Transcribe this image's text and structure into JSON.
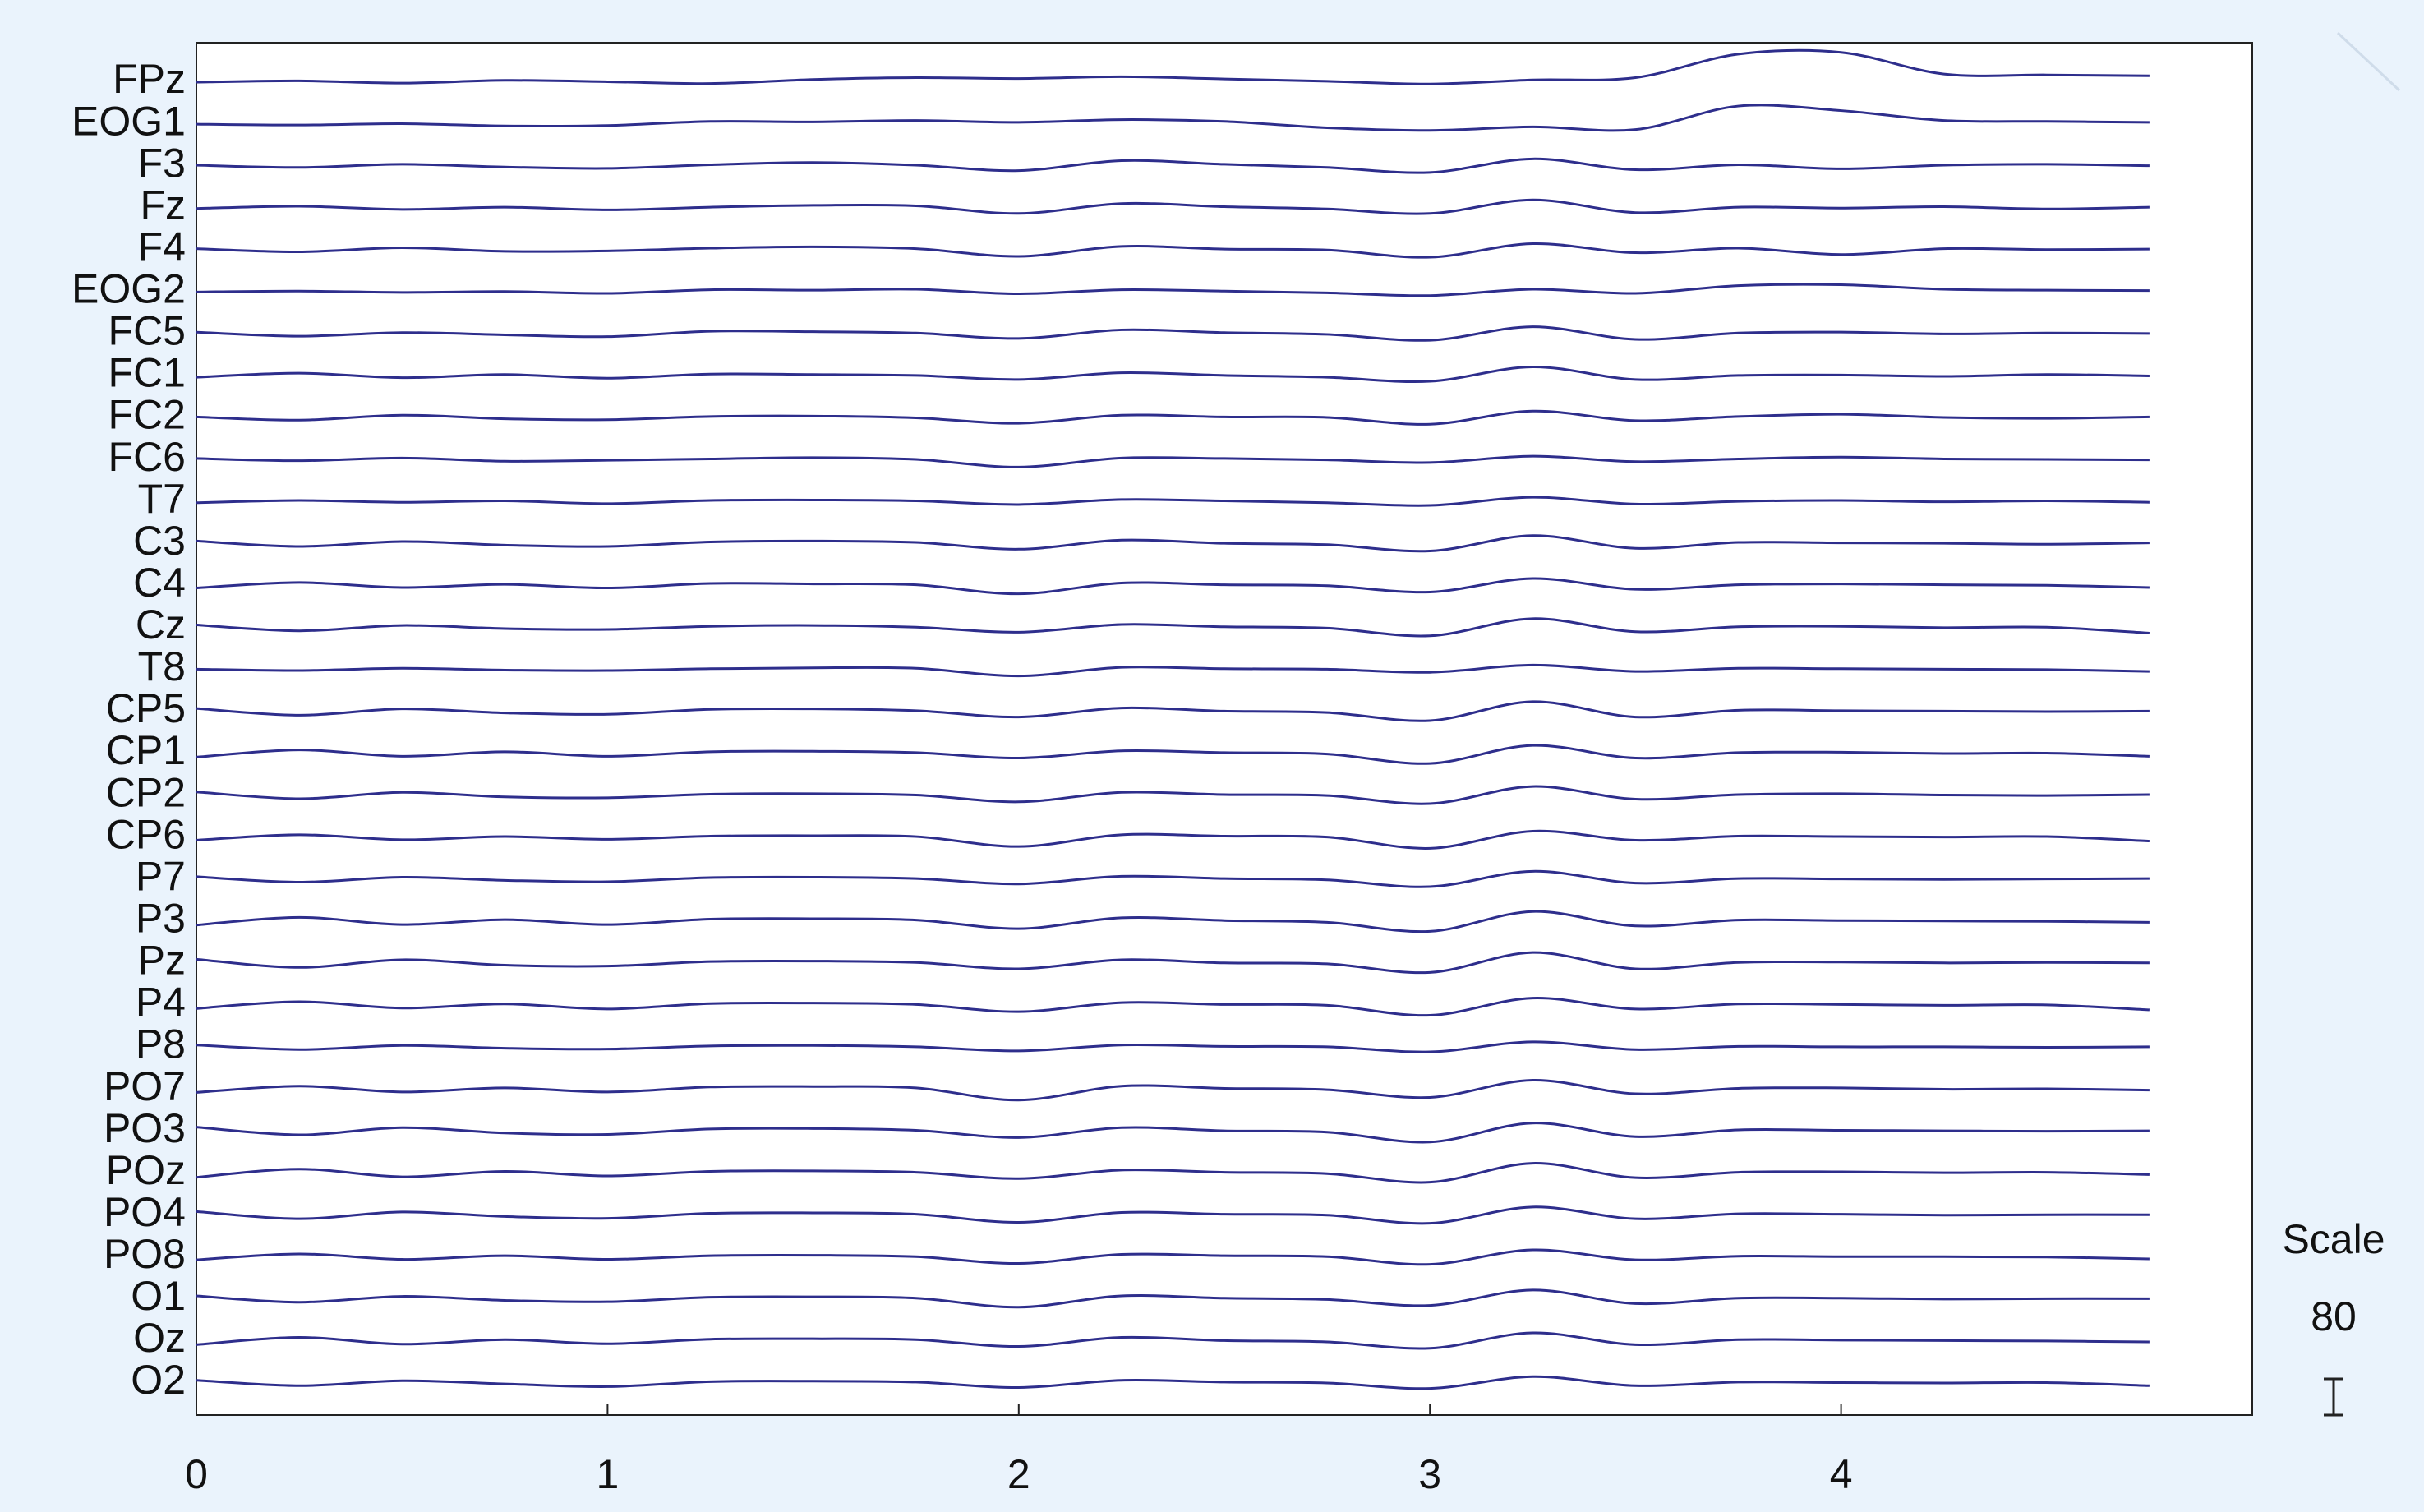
{
  "chart_data": {
    "type": "eeg",
    "color": "#2e2e8c",
    "x": [
      0,
      0.25,
      0.5,
      0.75,
      1,
      1.25,
      1.5,
      1.75,
      2,
      2.25,
      2.5,
      2.75,
      3,
      3.25,
      3.5,
      3.75,
      4,
      4.25,
      4.5,
      4.75
    ],
    "xlim": [
      0,
      5
    ],
    "xticks": [
      0,
      1,
      2,
      3,
      4
    ],
    "scale_label": "Scale",
    "scale_value": 80,
    "series": [
      {
        "name": "FPz",
        "values": [
          0,
          3,
          -2,
          4,
          1,
          -3,
          6,
          10,
          8,
          12,
          7,
          2,
          -4,
          5,
          10,
          62,
          66,
          18,
          16,
          14
        ]
      },
      {
        "name": "EOG1",
        "values": [
          0,
          -2,
          1,
          -4,
          -3,
          6,
          5,
          8,
          4,
          10,
          6,
          -8,
          -14,
          -6,
          -12,
          40,
          30,
          8,
          6,
          4
        ]
      },
      {
        "name": "F3",
        "values": [
          2,
          -3,
          4,
          -2,
          -5,
          3,
          8,
          2,
          -10,
          12,
          4,
          -3,
          -14,
          16,
          -8,
          3,
          -6,
          2,
          4,
          1
        ]
      },
      {
        "name": "Fz",
        "values": [
          -1,
          4,
          -3,
          2,
          -4,
          2,
          6,
          5,
          -12,
          10,
          3,
          -2,
          -12,
          18,
          -10,
          2,
          0,
          3,
          -2,
          2
        ]
      },
      {
        "name": "F4",
        "values": [
          3,
          -4,
          5,
          -3,
          -2,
          4,
          7,
          3,
          -14,
          8,
          2,
          0,
          -16,
          14,
          -6,
          4,
          -10,
          3,
          1,
          2
        ]
      },
      {
        "name": "EOG2",
        "values": [
          0,
          2,
          -1,
          1,
          -3,
          5,
          4,
          6,
          -4,
          5,
          2,
          -2,
          -8,
          6,
          -3,
          14,
          16,
          6,
          4,
          3
        ]
      },
      {
        "name": "FC5",
        "values": [
          4,
          -5,
          3,
          -2,
          -6,
          6,
          5,
          2,
          -10,
          9,
          3,
          -1,
          -14,
          16,
          -12,
          2,
          4,
          0,
          2,
          1
        ]
      },
      {
        "name": "FC1",
        "values": [
          -3,
          6,
          -4,
          3,
          -5,
          4,
          3,
          1,
          -8,
          7,
          1,
          -3,
          -12,
          20,
          -8,
          1,
          2,
          -1,
          3,
          0
        ]
      },
      {
        "name": "FC2",
        "values": [
          2,
          -5,
          6,
          -2,
          -4,
          3,
          4,
          0,
          -12,
          6,
          2,
          1,
          -14,
          15,
          -6,
          3,
          8,
          1,
          -1,
          2
        ]
      },
      {
        "name": "FC6",
        "values": [
          3,
          -2,
          4,
          -3,
          -1,
          2,
          5,
          1,
          -16,
          4,
          3,
          0,
          -6,
          8,
          -4,
          2,
          6,
          2,
          1,
          0
        ]
      },
      {
        "name": "T7",
        "values": [
          -2,
          3,
          -1,
          2,
          -4,
          3,
          4,
          2,
          -6,
          5,
          2,
          -2,
          -8,
          10,
          -5,
          1,
          3,
          0,
          2,
          -1
        ]
      },
      {
        "name": "C3",
        "values": [
          6,
          -6,
          5,
          -3,
          -6,
          4,
          6,
          3,
          -12,
          8,
          1,
          -2,
          -16,
          18,
          -10,
          3,
          2,
          1,
          -1,
          2
        ]
      },
      {
        "name": "C4",
        "values": [
          -5,
          7,
          -4,
          3,
          -5,
          5,
          4,
          2,
          -18,
          6,
          2,
          0,
          -14,
          16,
          -8,
          2,
          4,
          2,
          1,
          -4
        ]
      },
      {
        "name": "Cz",
        "values": [
          6,
          -7,
          5,
          -2,
          -4,
          3,
          5,
          1,
          -10,
          7,
          2,
          -1,
          -18,
          20,
          -9,
          2,
          3,
          0,
          1,
          -12
        ]
      },
      {
        "name": "T8",
        "values": [
          1,
          -2,
          3,
          -1,
          -2,
          2,
          4,
          3,
          -14,
          5,
          2,
          1,
          -6,
          10,
          -4,
          3,
          2,
          1,
          0,
          -4
        ]
      },
      {
        "name": "CP5",
        "values": [
          7,
          -8,
          6,
          -3,
          -6,
          5,
          6,
          2,
          -12,
          8,
          1,
          -2,
          -20,
          22,
          -12,
          3,
          2,
          1,
          0,
          1
        ]
      },
      {
        "name": "CP1",
        "values": [
          -8,
          8,
          -6,
          4,
          -6,
          4,
          5,
          2,
          -10,
          6,
          2,
          -1,
          -22,
          18,
          -10,
          2,
          3,
          0,
          1,
          -6
        ]
      },
      {
        "name": "CP2",
        "values": [
          8,
          -7,
          7,
          -3,
          -5,
          3,
          4,
          1,
          -14,
          7,
          2,
          0,
          -18,
          20,
          -8,
          2,
          4,
          1,
          0,
          2
        ]
      },
      {
        "name": "CP6",
        "values": [
          -6,
          6,
          -5,
          2,
          -4,
          3,
          4,
          2,
          -20,
          6,
          3,
          1,
          -24,
          14,
          -6,
          3,
          2,
          1,
          2,
          -8
        ]
      },
      {
        "name": "P7",
        "values": [
          6,
          -6,
          5,
          -2,
          -5,
          4,
          5,
          2,
          -10,
          7,
          2,
          -1,
          -16,
          18,
          -8,
          2,
          1,
          0,
          1,
          2
        ]
      },
      {
        "name": "P3",
        "values": [
          -8,
          9,
          -7,
          4,
          -7,
          5,
          6,
          3,
          -16,
          8,
          2,
          -2,
          -22,
          22,
          -10,
          3,
          2,
          1,
          0,
          -2
        ]
      },
      {
        "name": "Pz",
        "values": [
          9,
          -9,
          8,
          -4,
          -6,
          4,
          5,
          2,
          -12,
          8,
          1,
          -1,
          -20,
          24,
          -12,
          2,
          3,
          1,
          2,
          1
        ]
      },
      {
        "name": "P4",
        "values": [
          -7,
          8,
          -6,
          3,
          -8,
          4,
          5,
          2,
          -14,
          6,
          2,
          0,
          -22,
          16,
          -8,
          3,
          2,
          0,
          1,
          -10
        ]
      },
      {
        "name": "P8",
        "values": [
          5,
          -5,
          4,
          -2,
          -4,
          3,
          4,
          1,
          -8,
          5,
          2,
          1,
          -10,
          12,
          -5,
          2,
          1,
          1,
          0,
          1
        ]
      },
      {
        "name": "PO7",
        "values": [
          -7,
          7,
          -6,
          3,
          -6,
          5,
          6,
          3,
          -24,
          7,
          2,
          -1,
          -18,
          20,
          -10,
          2,
          3,
          0,
          1,
          -2
        ]
      },
      {
        "name": "PO3",
        "values": [
          9,
          -8,
          8,
          -4,
          -7,
          5,
          6,
          2,
          -14,
          8,
          1,
          -2,
          -24,
          18,
          -12,
          3,
          2,
          1,
          0,
          1
        ]
      },
      {
        "name": "POz",
        "values": [
          -9,
          9,
          -8,
          4,
          -6,
          4,
          5,
          2,
          -12,
          7,
          2,
          -1,
          -20,
          22,
          -10,
          2,
          3,
          1,
          2,
          -3
        ]
      },
      {
        "name": "PO4",
        "values": [
          8,
          -8,
          7,
          -3,
          -7,
          4,
          5,
          2,
          -16,
          6,
          2,
          0,
          -18,
          18,
          -8,
          3,
          2,
          0,
          1,
          1
        ]
      },
      {
        "name": "PO8",
        "values": [
          -6,
          7,
          -5,
          3,
          -5,
          3,
          4,
          1,
          -14,
          6,
          3,
          1,
          -16,
          16,
          -6,
          2,
          1,
          1,
          0,
          -4
        ]
      },
      {
        "name": "O1",
        "values": [
          7,
          -7,
          6,
          -3,
          -6,
          4,
          5,
          2,
          -18,
          7,
          2,
          -1,
          -14,
          20,
          -10,
          2,
          2,
          0,
          1,
          1
        ]
      },
      {
        "name": "Oz",
        "values": [
          -8,
          8,
          -7,
          3,
          -6,
          4,
          5,
          3,
          -12,
          8,
          1,
          -2,
          -16,
          18,
          -8,
          3,
          2,
          1,
          0,
          -2
        ]
      },
      {
        "name": "O2",
        "values": [
          6,
          -6,
          5,
          -2,
          -8,
          3,
          4,
          2,
          -10,
          6,
          2,
          0,
          -12,
          14,
          -6,
          2,
          1,
          0,
          1,
          -6
        ]
      }
    ]
  }
}
